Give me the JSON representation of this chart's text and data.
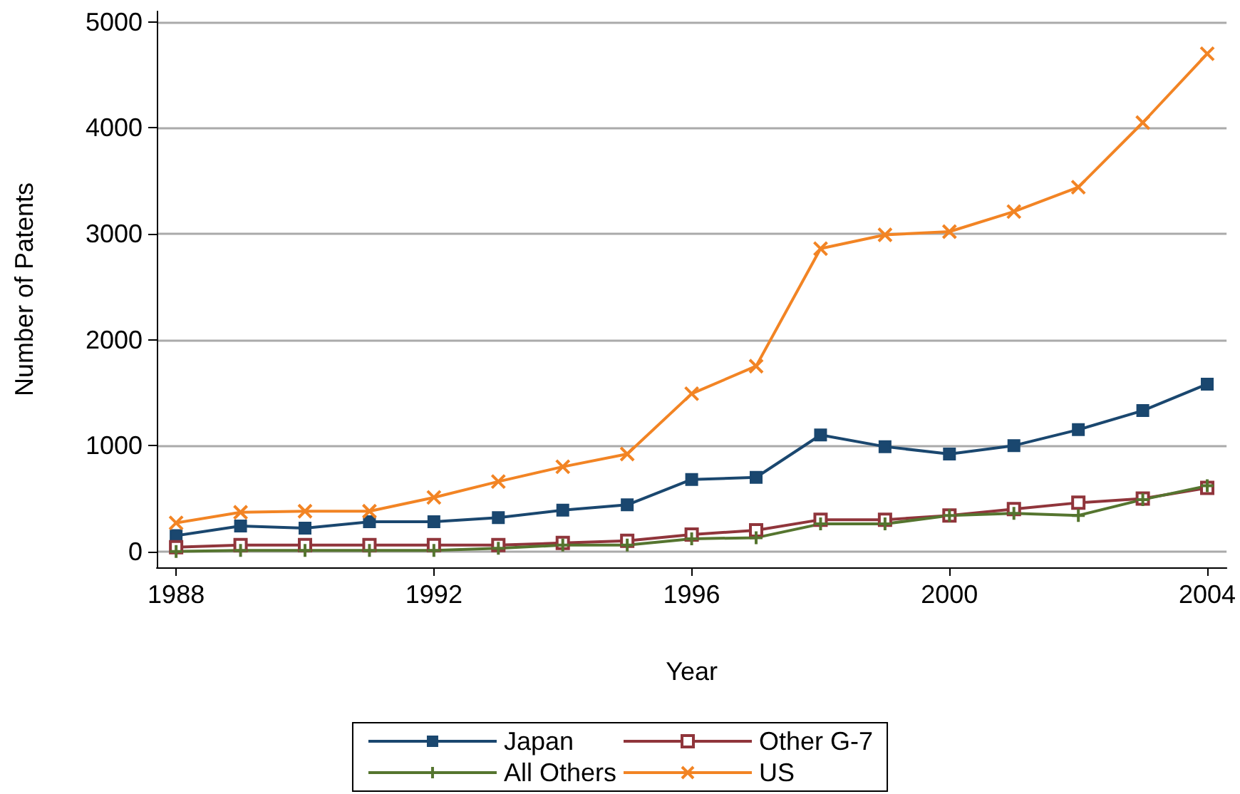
{
  "chart_data": {
    "type": "line",
    "xlabel": "Year",
    "ylabel": "Number of Patents",
    "x": [
      1988,
      1989,
      1990,
      1991,
      1992,
      1993,
      1994,
      1995,
      1996,
      1997,
      1998,
      1999,
      2000,
      2001,
      2002,
      2003,
      2004
    ],
    "series": [
      {
        "name": "Japan",
        "color": "#1a476f",
        "marker": "square",
        "values": [
          150,
          240,
          220,
          280,
          280,
          320,
          390,
          440,
          680,
          700,
          1100,
          990,
          920,
          1000,
          1150,
          1330,
          1580
        ]
      },
      {
        "name": "Other G-7",
        "color": "#90353b",
        "marker": "square",
        "values": [
          40,
          60,
          60,
          60,
          60,
          60,
          80,
          100,
          160,
          200,
          300,
          300,
          340,
          400,
          460,
          500,
          600
        ]
      },
      {
        "name": "All Others",
        "color": "#55752f",
        "marker": "cross",
        "values": [
          0,
          10,
          10,
          10,
          10,
          30,
          60,
          60,
          120,
          130,
          260,
          260,
          340,
          360,
          340,
          490,
          620
        ]
      },
      {
        "name": "US",
        "color": "#f28424",
        "marker": "cross",
        "values": [
          270,
          370,
          380,
          380,
          510,
          660,
          800,
          920,
          1490,
          1750,
          2860,
          2990,
          3020,
          3210,
          3440,
          4050,
          4700
        ]
      }
    ],
    "xlim": [
      1987.7,
      2004.3
    ],
    "xticks": [
      1988,
      1992,
      1996,
      2000,
      2004
    ],
    "ylim": [
      -150,
      5100
    ],
    "yticks": [
      0,
      1000,
      2000,
      3000,
      4000,
      5000
    ],
    "grid": "y",
    "legend": "bottom",
    "line_style": "solid"
  }
}
